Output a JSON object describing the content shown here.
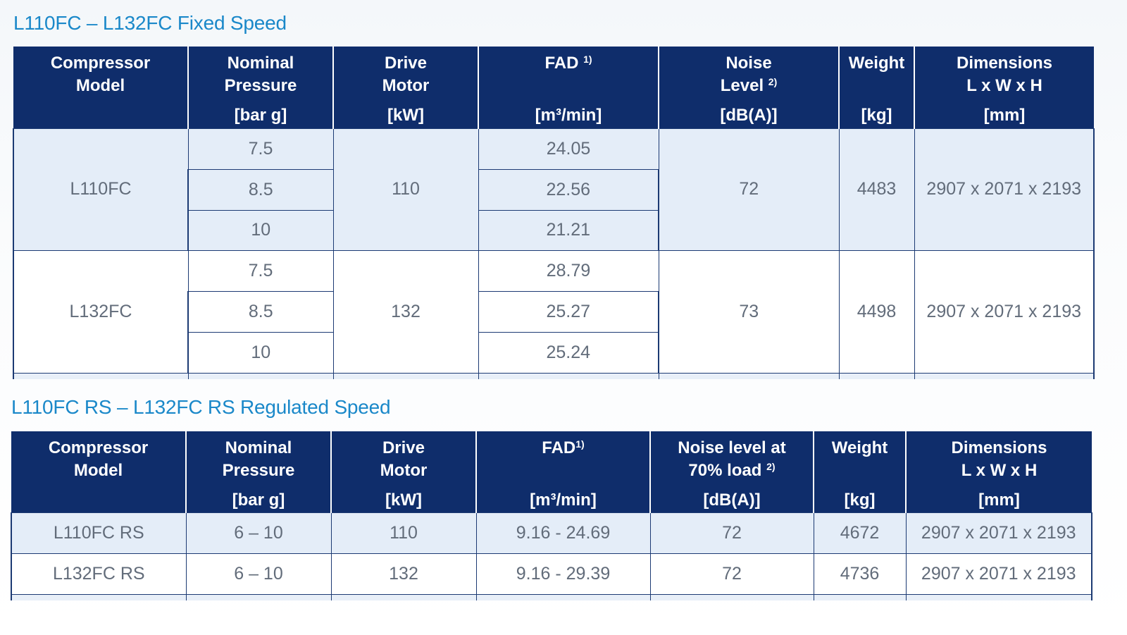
{
  "fixed": {
    "title": "L110FC – L132FC Fixed Speed",
    "headers": {
      "model_l1": "Compressor",
      "model_l2": "Model",
      "pressure_l1": "Nominal",
      "pressure_l2": "Pressure",
      "pressure_unit": "[bar g]",
      "motor_l1": "Drive",
      "motor_l2": "Motor",
      "motor_unit": "[kW]",
      "fad_l1": "FAD",
      "fad_note": "1)",
      "fad_unit": "[m³/min]",
      "noise_l1": "Noise",
      "noise_l2": "Level",
      "noise_note": "2)",
      "noise_unit": "[dB(A)]",
      "weight_l1": "Weight",
      "weight_unit": "[kg]",
      "dim_l1": "Dimensions",
      "dim_l2": "L x W x H",
      "dim_unit": "[mm]"
    },
    "groups": [
      {
        "model": "L110FC",
        "motor": "110",
        "noise": "72",
        "weight": "4483",
        "dimensions": "2907 x 2071 x 2193",
        "rows": [
          {
            "pressure": "7.5",
            "fad": "24.05"
          },
          {
            "pressure": "8.5",
            "fad": "22.56"
          },
          {
            "pressure": "10",
            "fad": "21.21"
          }
        ]
      },
      {
        "model": "L132FC",
        "motor": "132",
        "noise": "73",
        "weight": "4498",
        "dimensions": "2907 x 2071 x 2193",
        "rows": [
          {
            "pressure": "7.5",
            "fad": "28.79"
          },
          {
            "pressure": "8.5",
            "fad": "25.27"
          },
          {
            "pressure": "10",
            "fad": "25.24"
          }
        ]
      }
    ]
  },
  "regulated": {
    "title": "L110FC RS – L132FC RS Regulated Speed",
    "headers": {
      "model_l1": "Compressor",
      "model_l2": "Model",
      "pressure_l1": "Nominal",
      "pressure_l2": "Pressure",
      "pressure_unit": "[bar g]",
      "motor_l1": "Drive",
      "motor_l2": "Motor",
      "motor_unit": "[kW]",
      "fad_l1": "FAD",
      "fad_note": "1)",
      "fad_unit": "[m³/min]",
      "noise_l1": "Noise level at",
      "noise_l2": "70% load",
      "noise_note": "2)",
      "noise_unit": "[dB(A)]",
      "weight_l1": "Weight",
      "weight_unit": "[kg]",
      "dim_l1": "Dimensions",
      "dim_l2": "L x W x H",
      "dim_unit": "[mm]"
    },
    "rows": [
      {
        "model": "L110FC RS",
        "pressure": "6 – 10",
        "motor": "110",
        "fad": "9.16 - 24.69",
        "noise": "72",
        "weight": "4672",
        "dimensions": "2907 x 2071 x 2193"
      },
      {
        "model": "L132FC RS",
        "pressure": "6 – 10",
        "motor": "132",
        "fad": "9.16 - 29.39",
        "noise": "72",
        "weight": "4736",
        "dimensions": "2907 x 2071 x 2193"
      }
    ]
  }
}
